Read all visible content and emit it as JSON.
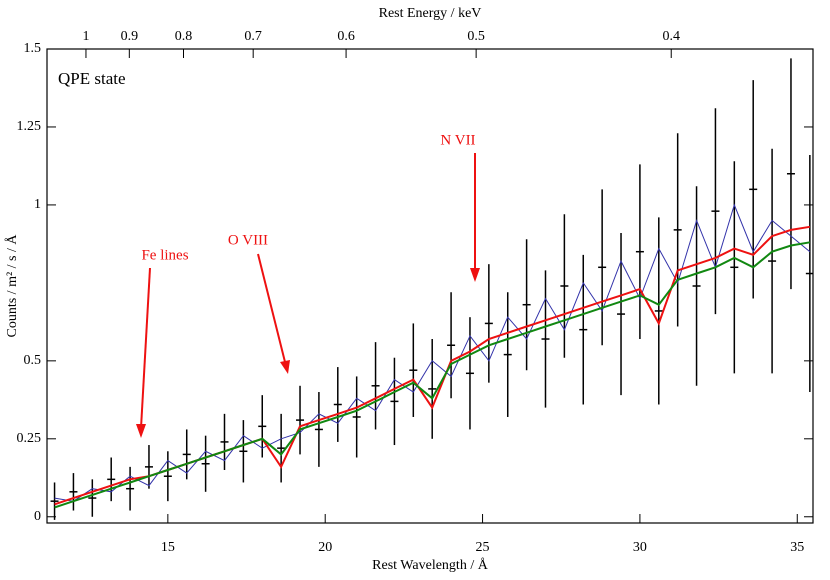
{
  "chart_data": {
    "type": "spectrum",
    "title": "Rest Energy / keV",
    "x_label": "Rest Wavelength / Å",
    "y_label": "Counts / m² / s / Å",
    "label": "QPE state",
    "annotations": [
      "Fe lines",
      "O VIII",
      "N VII"
    ],
    "x": [
      11.4,
      12.0,
      12.6,
      13.2,
      13.8,
      14.4,
      15.0,
      15.6,
      16.2,
      16.8,
      17.4,
      18.0,
      18.6,
      19.2,
      19.8,
      20.4,
      21.0,
      21.6,
      22.2,
      22.8,
      23.4,
      24.0,
      24.6,
      25.2,
      25.8,
      26.4,
      27.0,
      27.6,
      28.2,
      28.8,
      29.4,
      30.0,
      30.6,
      31.2,
      31.8,
      32.4,
      33.0,
      33.6,
      34.2,
      34.8,
      35.4
    ],
    "series": [
      {
        "color": "#000000",
        "values": [
          0.05,
          0.08,
          0.06,
          0.12,
          0.09,
          0.16,
          0.13,
          0.2,
          0.17,
          0.24,
          0.21,
          0.29,
          0.22,
          0.31,
          0.28,
          0.36,
          0.32,
          0.42,
          0.37,
          0.47,
          0.41,
          0.55,
          0.46,
          0.62,
          0.52,
          0.68,
          0.57,
          0.74,
          0.6,
          0.8,
          0.65,
          0.85,
          0.66,
          0.92,
          0.74,
          0.98,
          0.8,
          1.05,
          0.82,
          1.1,
          0.78
        ],
        "errors": [
          0.06,
          0.06,
          0.06,
          0.07,
          0.07,
          0.07,
          0.08,
          0.08,
          0.09,
          0.09,
          0.1,
          0.1,
          0.11,
          0.11,
          0.12,
          0.12,
          0.13,
          0.14,
          0.14,
          0.15,
          0.16,
          0.17,
          0.18,
          0.19,
          0.2,
          0.21,
          0.22,
          0.23,
          0.24,
          0.25,
          0.26,
          0.28,
          0.3,
          0.31,
          0.32,
          0.33,
          0.34,
          0.35,
          0.36,
          0.37,
          0.38
        ]
      },
      {
        "color": "#3333aa",
        "values": [
          0.06,
          0.05,
          0.09,
          0.08,
          0.13,
          0.1,
          0.18,
          0.14,
          0.21,
          0.18,
          0.26,
          0.22,
          0.25,
          0.27,
          0.33,
          0.3,
          0.38,
          0.34,
          0.44,
          0.4,
          0.5,
          0.45,
          0.58,
          0.5,
          0.64,
          0.57,
          0.7,
          0.6,
          0.75,
          0.66,
          0.82,
          0.7,
          0.86,
          0.75,
          0.95,
          0.8,
          1.0,
          0.85,
          0.95,
          0.9,
          0.85
        ]
      },
      {
        "color": "#ee1111",
        "values": [
          0.04,
          0.06,
          0.08,
          0.1,
          0.12,
          0.13,
          0.15,
          0.17,
          0.19,
          0.21,
          0.23,
          0.25,
          0.16,
          0.29,
          0.31,
          0.33,
          0.35,
          0.38,
          0.41,
          0.44,
          0.35,
          0.5,
          0.53,
          0.57,
          0.59,
          0.61,
          0.63,
          0.65,
          0.67,
          0.69,
          0.71,
          0.73,
          0.62,
          0.79,
          0.81,
          0.83,
          0.86,
          0.84,
          0.9,
          0.92,
          0.93
        ]
      },
      {
        "color": "#118811",
        "values": [
          0.03,
          0.05,
          0.07,
          0.09,
          0.11,
          0.13,
          0.15,
          0.17,
          0.19,
          0.21,
          0.23,
          0.25,
          0.2,
          0.28,
          0.3,
          0.32,
          0.34,
          0.37,
          0.4,
          0.43,
          0.38,
          0.49,
          0.52,
          0.55,
          0.57,
          0.59,
          0.61,
          0.63,
          0.65,
          0.67,
          0.69,
          0.71,
          0.68,
          0.76,
          0.78,
          0.8,
          0.83,
          0.8,
          0.85,
          0.87,
          0.88
        ]
      }
    ],
    "xlim": [
      11.16,
      35.5
    ],
    "ylim": [
      -0.02,
      1.5
    ],
    "xticks": [
      15,
      20,
      25,
      30,
      35
    ],
    "yticks": [
      0,
      0.25,
      0.5,
      1,
      1.25,
      1.5
    ],
    "x2ticks": [
      1,
      0.9,
      0.8,
      0.7,
      0.6,
      0.5,
      0.4
    ]
  }
}
